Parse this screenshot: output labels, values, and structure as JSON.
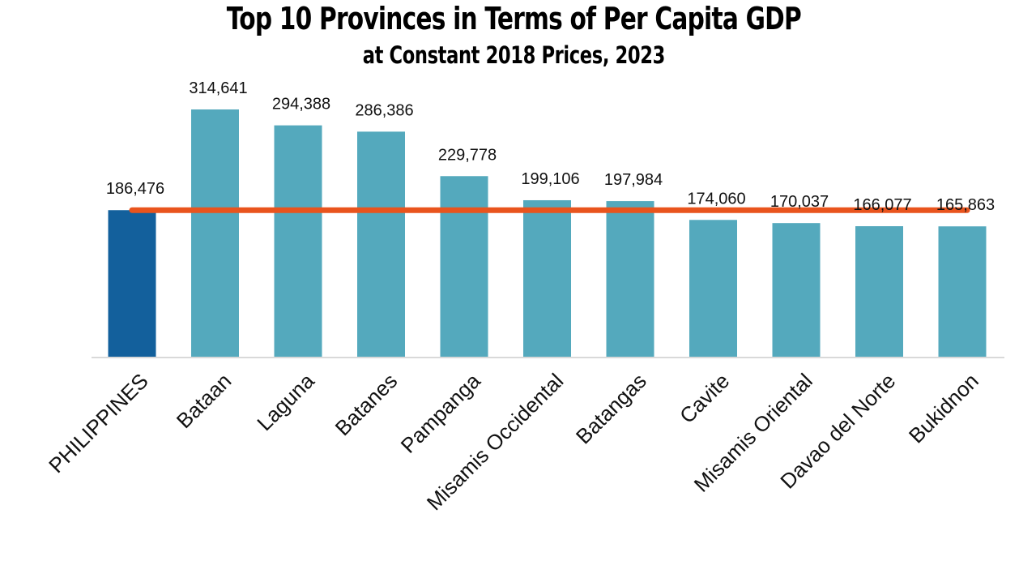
{
  "chart_data": {
    "type": "bar",
    "title": "Top 10 Provinces in Terms of Per Capita GDP",
    "subtitle": "at Constant 2018 Prices, 2023",
    "categories": [
      "PHILIPPINES",
      "Bataan",
      "Laguna",
      "Batanes",
      "Pampanga",
      "Misamis Occidental",
      "Batangas",
      "Cavite",
      "Misamis Oriental",
      "Davao del Norte",
      "Bukidnon"
    ],
    "values": [
      186476,
      314641,
      294388,
      286386,
      229778,
      199106,
      197984,
      174060,
      170037,
      166077,
      165863
    ],
    "value_labels": [
      "186,476",
      "314,641",
      "294,388",
      "286,386",
      "229,778",
      "199,106",
      "197,984",
      "174,060",
      "170,037",
      "166,077",
      "165,863"
    ],
    "reference_line": {
      "value": 186476
    },
    "ylim": [
      0,
      340000
    ],
    "grid": false,
    "colors": {
      "national_bar": "#13609c",
      "province_bar": "#54a9bd",
      "reference_line": "#e9541d",
      "axis": "#d9d9d9"
    }
  }
}
